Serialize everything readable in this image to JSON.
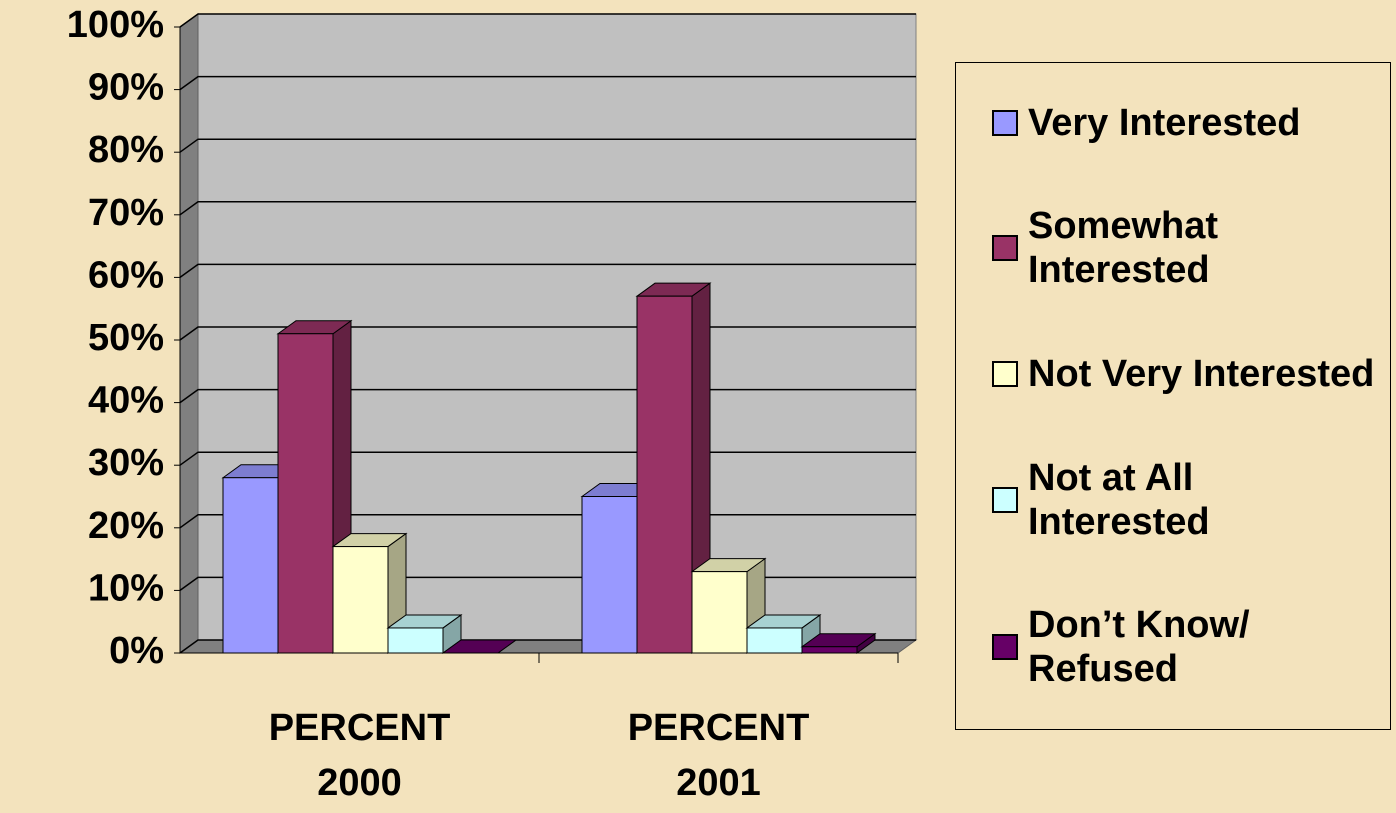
{
  "chart_data": {
    "type": "bar3d",
    "categories": [
      "PERCENT 2000",
      "PERCENT 2001"
    ],
    "series": [
      {
        "name": "Very Interested",
        "color": "#9999ff",
        "values": [
          28,
          25
        ]
      },
      {
        "name": "Somewhat Interested",
        "color": "#993366",
        "values": [
          51,
          57
        ]
      },
      {
        "name": "Not Very Interested",
        "color": "#ffffcc",
        "values": [
          17,
          13
        ]
      },
      {
        "name": "Not at All Interested",
        "color": "#ccffff",
        "values": [
          4,
          4
        ]
      },
      {
        "name": "Don’t Know/ Refused",
        "color": "#660066",
        "values": [
          0,
          1
        ]
      }
    ],
    "ylim": [
      0,
      100
    ],
    "yticks": [
      {
        "value": 0,
        "label": "0%"
      },
      {
        "value": 10,
        "label": "10%"
      },
      {
        "value": 20,
        "label": "20%"
      },
      {
        "value": 30,
        "label": "30%"
      },
      {
        "value": 40,
        "label": "40%"
      },
      {
        "value": 50,
        "label": "50%"
      },
      {
        "value": 60,
        "label": "60%"
      },
      {
        "value": 70,
        "label": "70%"
      },
      {
        "value": 80,
        "label": "80%"
      },
      {
        "value": 90,
        "label": "90%"
      },
      {
        "value": 100,
        "label": "100%"
      }
    ],
    "grid": true,
    "legend": "right"
  }
}
